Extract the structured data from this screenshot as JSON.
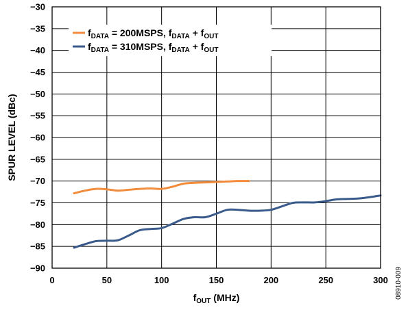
{
  "chart_data": {
    "type": "line",
    "title": "",
    "xlabel": {
      "main": "f",
      "sub": "OUT",
      "rest": " (MHz)"
    },
    "ylabel": "SPUR LEVEL (dBc)",
    "xlim": [
      0,
      300
    ],
    "ylim": [
      -90,
      -30
    ],
    "xticks": [
      0,
      50,
      100,
      150,
      200,
      250,
      300
    ],
    "yticks": [
      -30,
      -35,
      -40,
      -45,
      -50,
      -55,
      -60,
      -65,
      -70,
      -75,
      -80,
      -85,
      -90
    ],
    "grid": true,
    "legend_position": "top-left",
    "figure_id": "08910-009",
    "series": [
      {
        "name": "fDATA = 200MSPS, fDATA + fOUT",
        "legend": [
          {
            "t": "f",
            "sub": false
          },
          {
            "t": "DATA",
            "sub": true
          },
          {
            "t": " = 200MSPS, f",
            "sub": false
          },
          {
            "t": "DATA",
            "sub": true
          },
          {
            "t": " + f",
            "sub": false
          },
          {
            "t": "OUT",
            "sub": true
          }
        ],
        "color": "#F28C3C",
        "x": [
          20,
          30,
          40,
          50,
          60,
          70,
          80,
          90,
          100,
          110,
          120,
          130,
          140,
          150,
          160,
          170,
          180
        ],
        "y": [
          -72.8,
          -72.2,
          -71.8,
          -71.9,
          -72.2,
          -72.0,
          -71.8,
          -71.7,
          -71.8,
          -71.3,
          -70.6,
          -70.4,
          -70.3,
          -70.2,
          -70.1,
          -70.0,
          -70.0
        ]
      },
      {
        "name": "fDATA = 310MSPS, fDATA + fOUT",
        "legend": [
          {
            "t": "f",
            "sub": false
          },
          {
            "t": "DATA",
            "sub": true
          },
          {
            "t": " = 310MSPS, f",
            "sub": false
          },
          {
            "t": "DATA",
            "sub": true
          },
          {
            "t": " + f",
            "sub": false
          },
          {
            "t": "OUT",
            "sub": true
          }
        ],
        "color": "#3A5A8C",
        "x": [
          20,
          30,
          40,
          50,
          60,
          70,
          80,
          90,
          100,
          110,
          120,
          130,
          140,
          150,
          160,
          170,
          180,
          190,
          200,
          210,
          220,
          230,
          240,
          250,
          260,
          270,
          280,
          290,
          300
        ],
        "y": [
          -85.3,
          -84.5,
          -83.8,
          -83.7,
          -83.6,
          -82.5,
          -81.3,
          -81.0,
          -80.8,
          -79.8,
          -78.7,
          -78.3,
          -78.3,
          -77.5,
          -76.6,
          -76.6,
          -76.8,
          -76.8,
          -76.6,
          -75.8,
          -75.0,
          -74.9,
          -74.9,
          -74.6,
          -74.2,
          -74.1,
          -74.0,
          -73.7,
          -73.3
        ]
      }
    ]
  }
}
